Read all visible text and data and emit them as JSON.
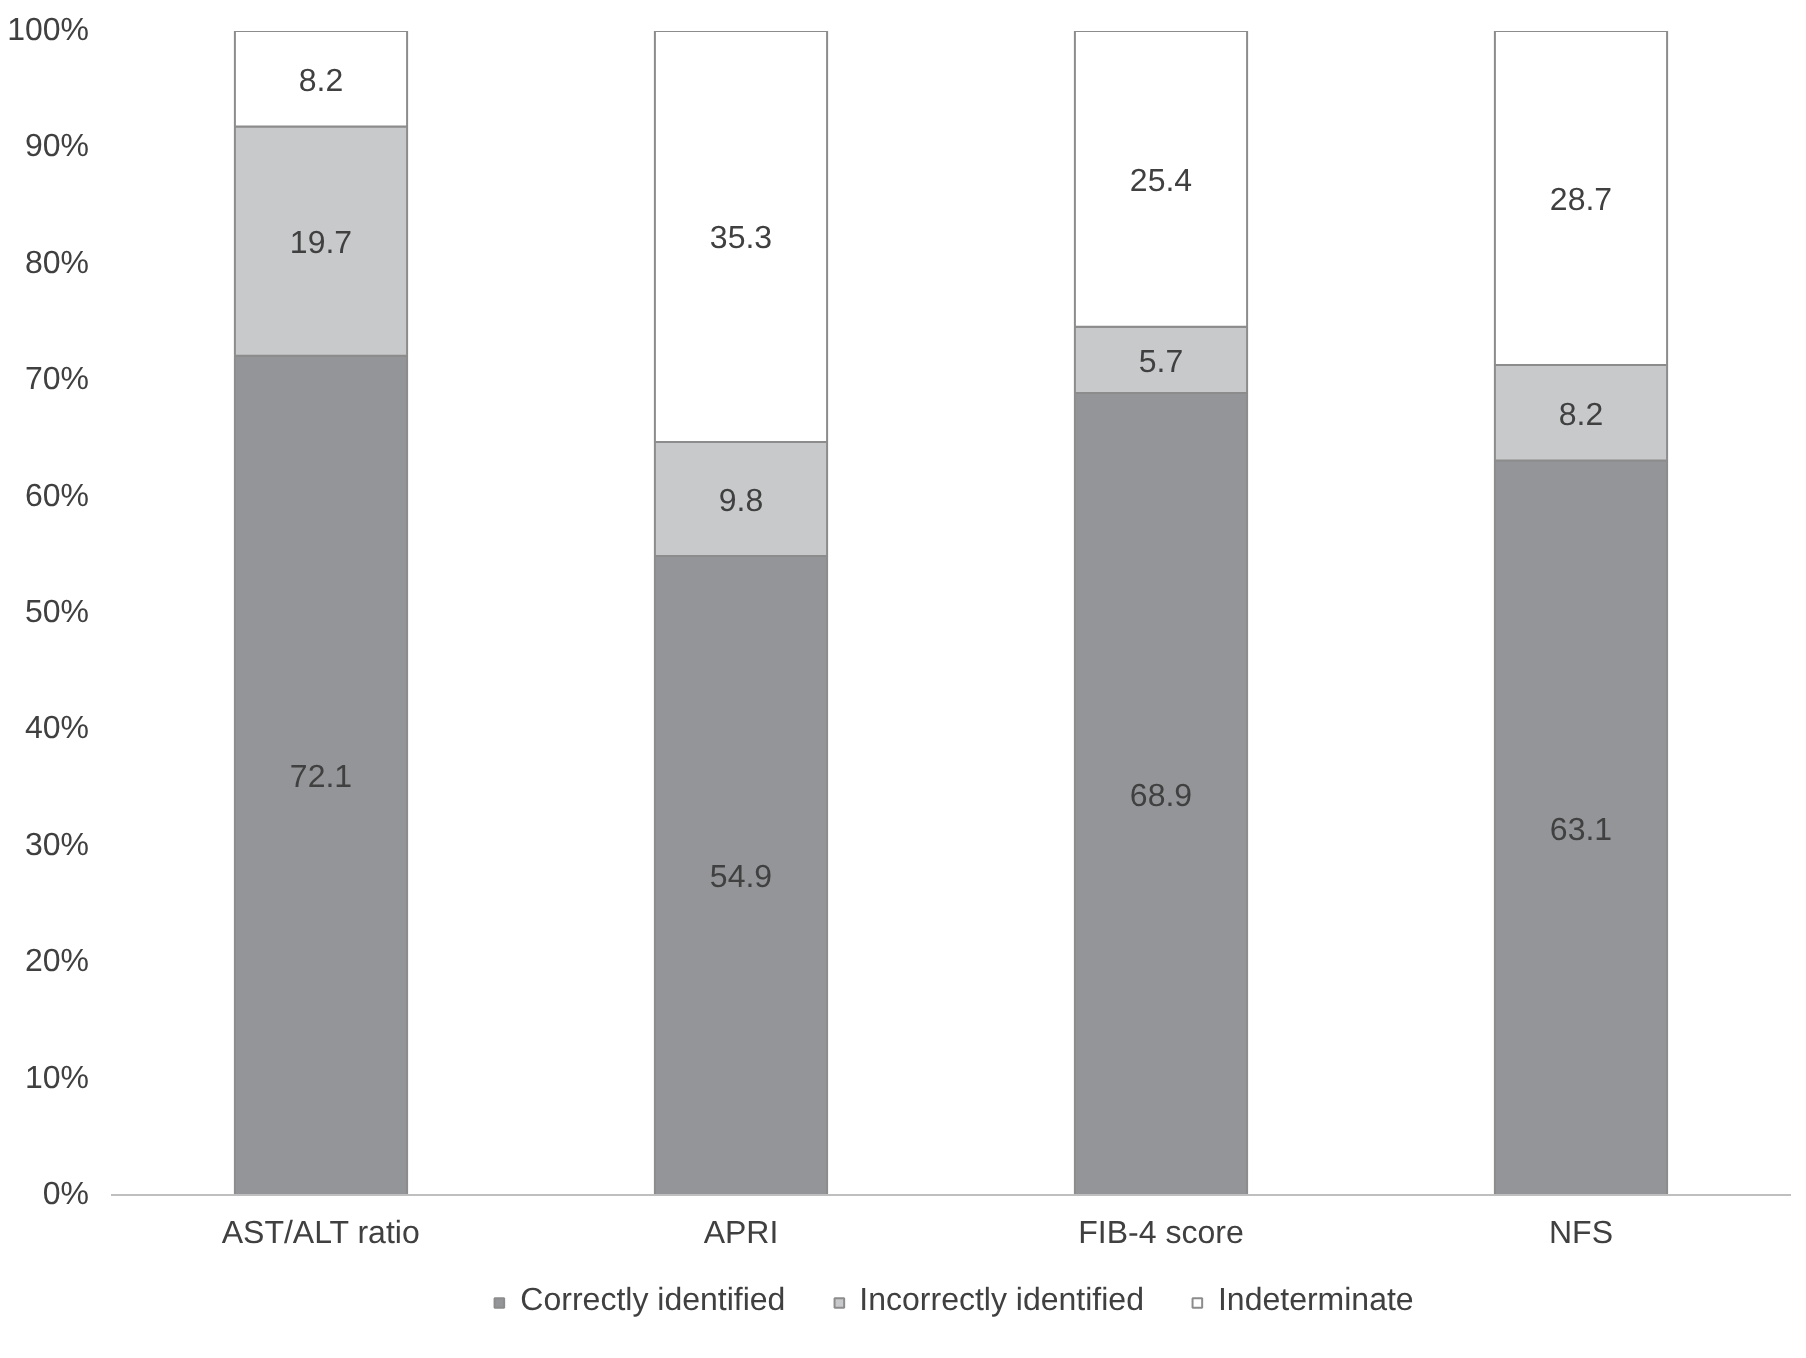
{
  "chart_data": {
    "type": "bar",
    "stacked": true,
    "categories": [
      "AST/ALT ratio",
      "APRI",
      "FIB-4 score",
      "NFS"
    ],
    "series": [
      {
        "name": "Correctly identified",
        "color": "#939598",
        "values": [
          72.1,
          54.9,
          68.9,
          63.1
        ]
      },
      {
        "name": "Incorrectly identified",
        "color": "#c8c9cb",
        "values": [
          19.7,
          9.8,
          5.7,
          8.2
        ]
      },
      {
        "name": "Indeterminate",
        "color": "#ffffff",
        "values": [
          8.2,
          35.3,
          25.4,
          28.7
        ]
      }
    ],
    "ylim": [
      0,
      100
    ],
    "yticks": [
      {
        "value": 0,
        "label": "0%"
      },
      {
        "value": 10,
        "label": "10%"
      },
      {
        "value": 20,
        "label": "20%"
      },
      {
        "value": 30,
        "label": "30%"
      },
      {
        "value": 40,
        "label": "40%"
      },
      {
        "value": 50,
        "label": "50%"
      },
      {
        "value": 60,
        "label": "60%"
      },
      {
        "value": 70,
        "label": "70%"
      },
      {
        "value": 80,
        "label": "80%"
      },
      {
        "value": 90,
        "label": "90%"
      },
      {
        "value": 100,
        "label": "100%"
      }
    ],
    "data_labels": true,
    "grid": false,
    "legend": "bottom"
  }
}
